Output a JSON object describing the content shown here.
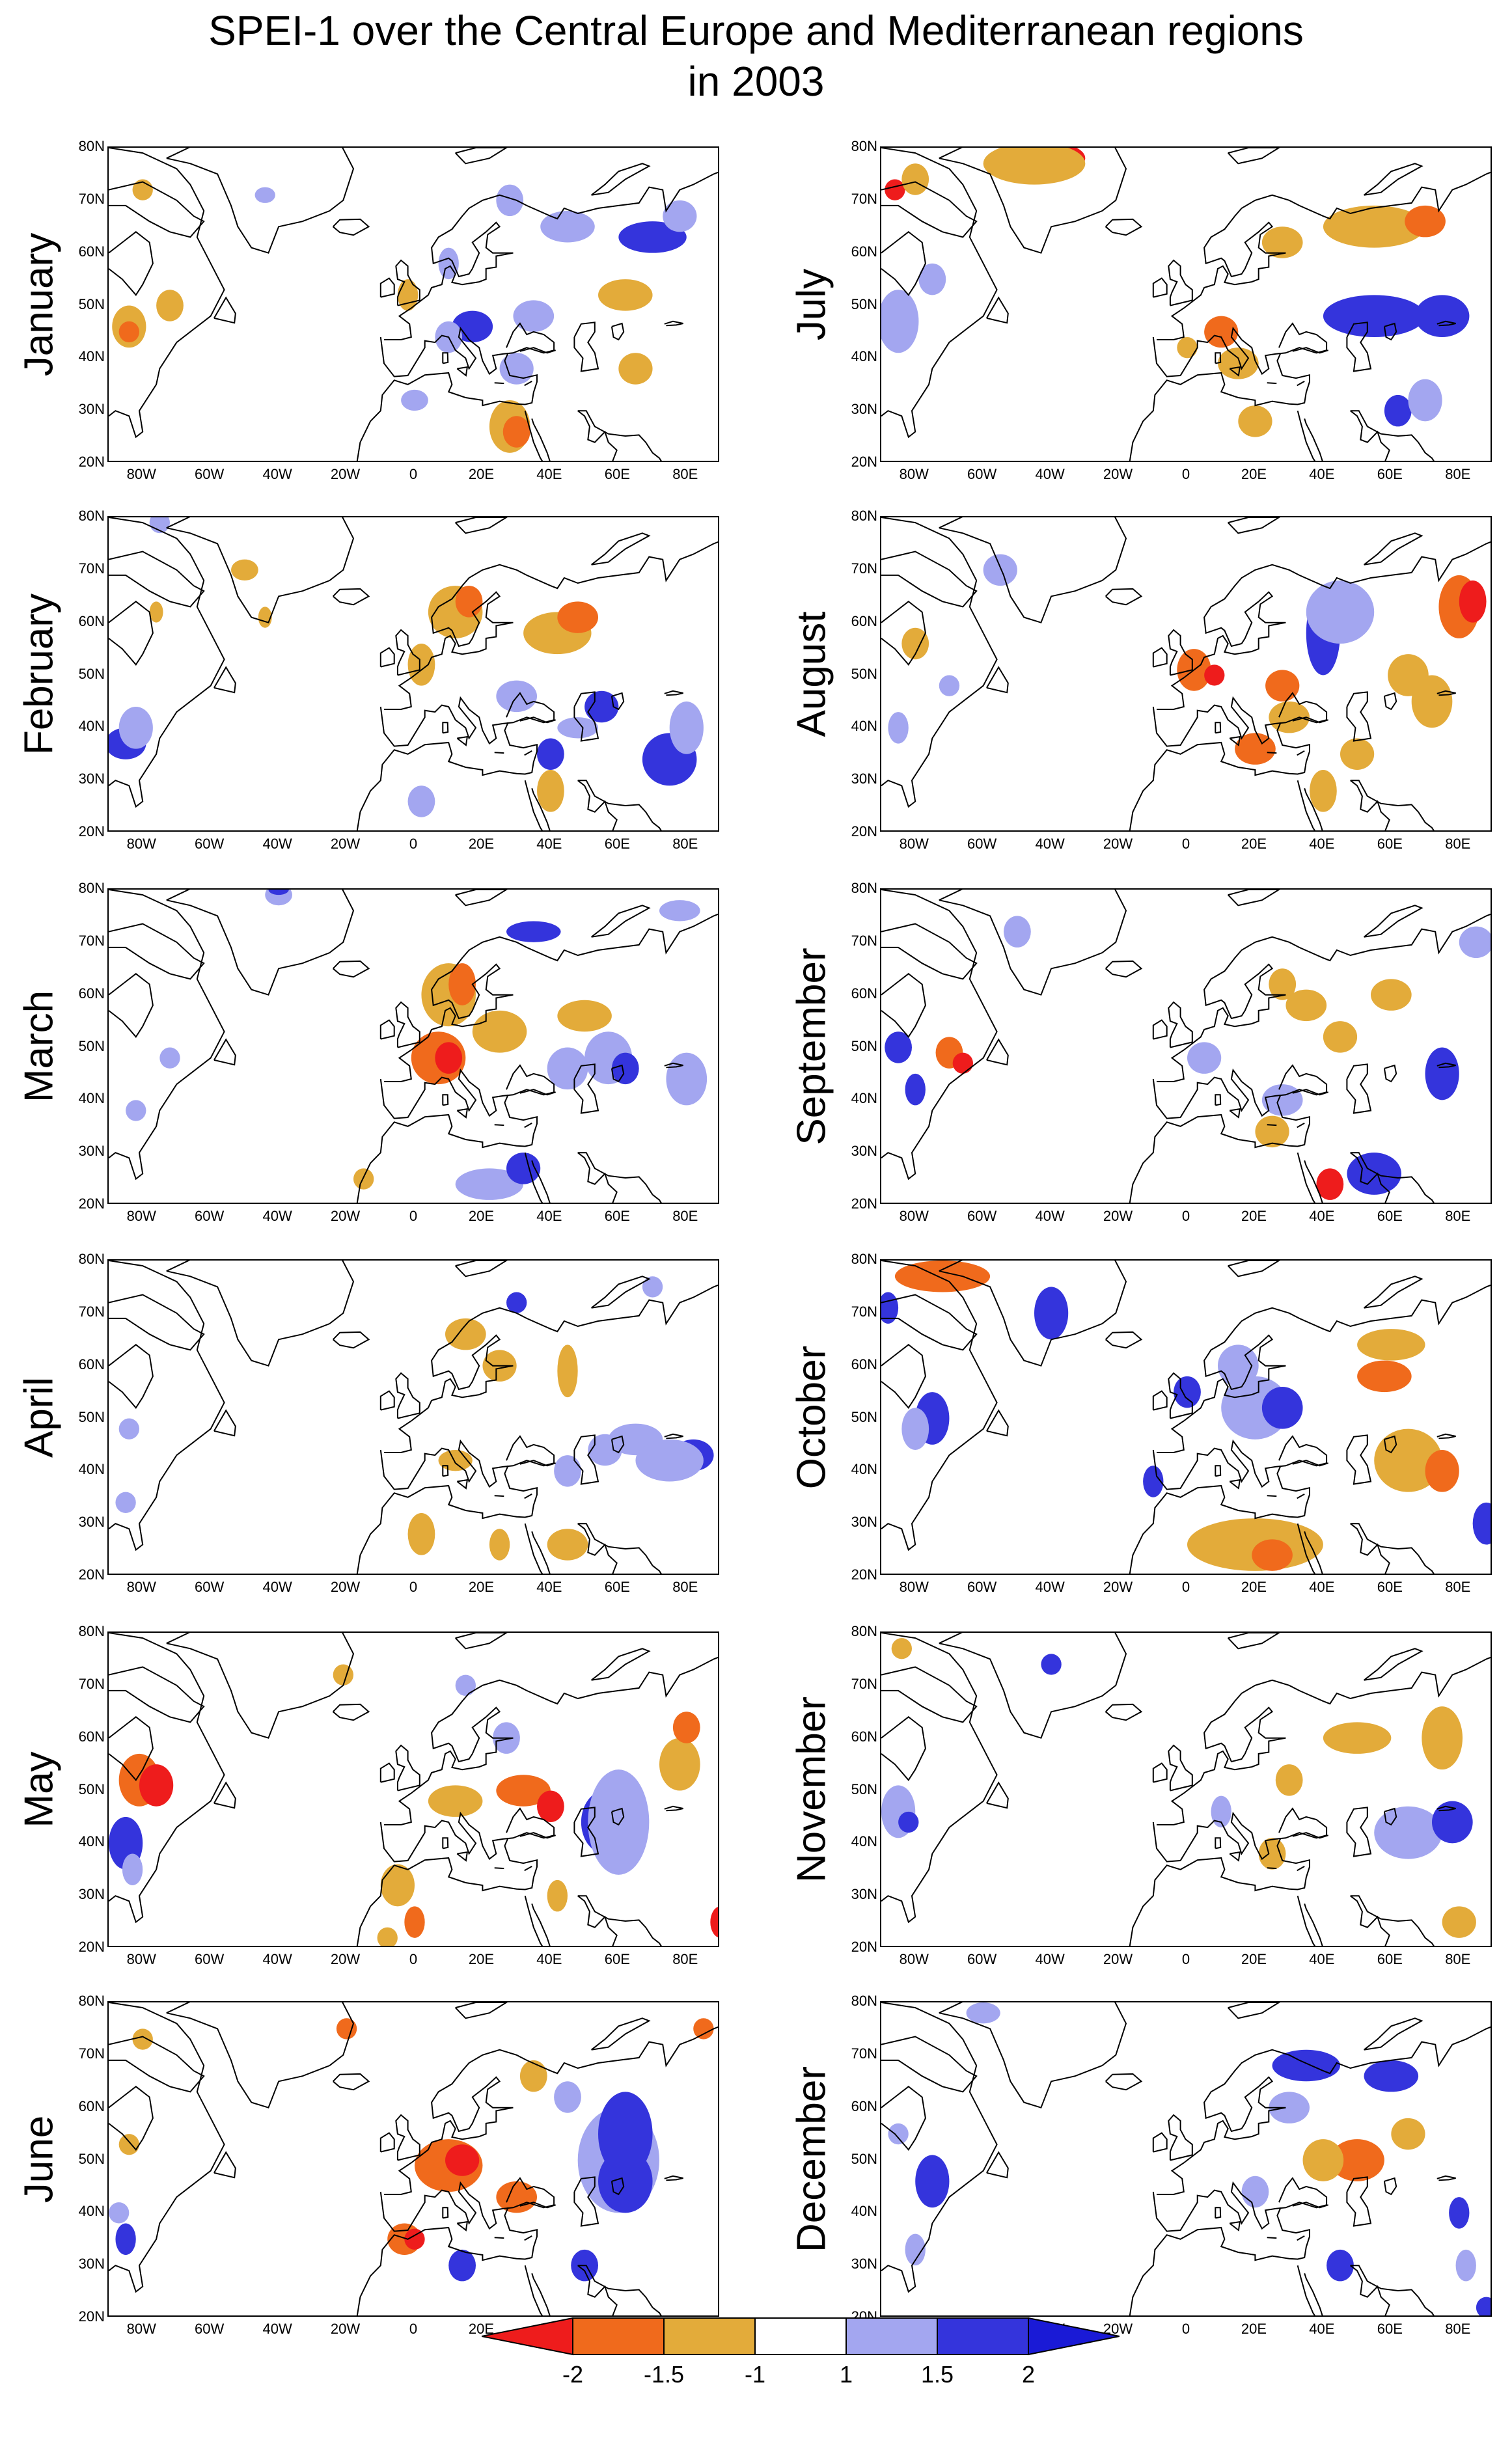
{
  "title_line1": "SPEI-1 over the Central Europe and Mediterranean regions",
  "title_line2": "in 2003",
  "lat_labels": [
    "80N",
    "70N",
    "60N",
    "50N",
    "40N",
    "30N",
    "20N"
  ],
  "lon_labels": [
    "80W",
    "60W",
    "40W",
    "20W",
    "0",
    "20E",
    "40E",
    "60E",
    "80E"
  ],
  "months": [
    "January",
    "February",
    "March",
    "April",
    "May",
    "June",
    "July",
    "August",
    "September",
    "October",
    "November",
    "December"
  ],
  "colorbar": {
    "labels": [
      "-2",
      "-1.5",
      "-1",
      "1",
      "1.5",
      "2"
    ],
    "colors": [
      "#ee1c1c",
      "#f06a1c",
      "#e3ab3a",
      "#ffffff",
      "#a3a6f0",
      "#3434dc",
      "#1a1ad6"
    ]
  },
  "colors": {
    "dry_extreme": "#ee1c1c",
    "dry_severe": "#f06a1c",
    "dry_moderate": "#e3ab3a",
    "wet_moderate": "#a3a6f0",
    "wet_severe": "#3434dc",
    "coast": "#000000"
  }
}
